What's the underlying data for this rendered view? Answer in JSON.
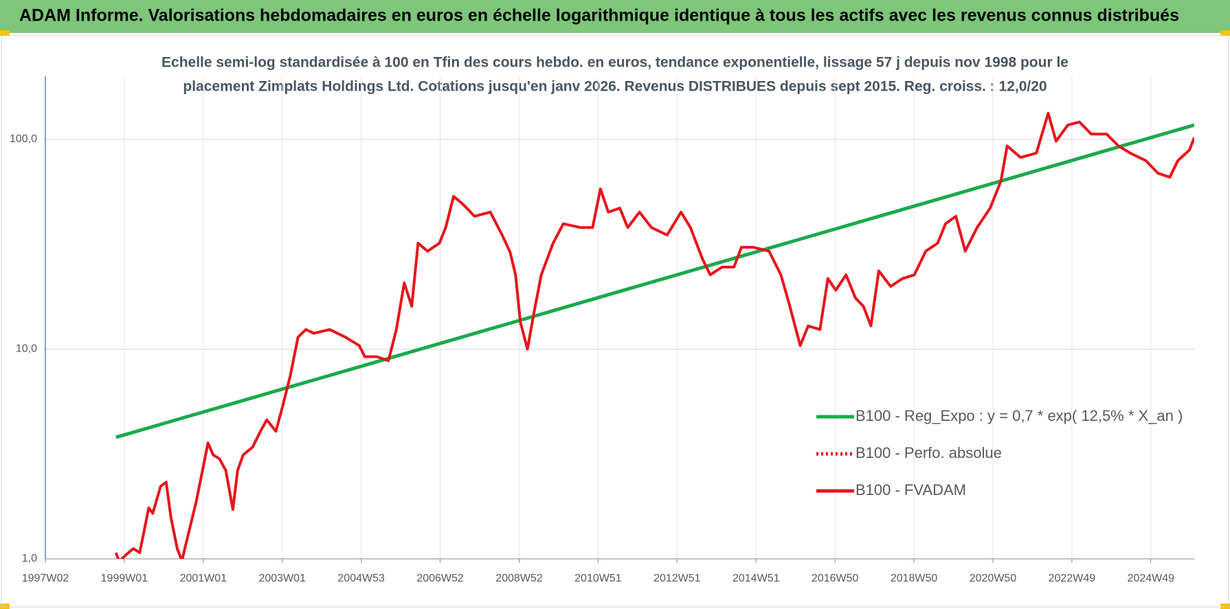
{
  "chart_data": {
    "type": "line",
    "title": "ADAM Informe. Valorisations hebdomadaires en euros en échelle logarithmique identique à tous les actifs avec les revenus connus distribués",
    "subtitle": [
      "Echelle semi-log standardisée à 100 en Tfin des cours hebdo. en euros, tendance exponentielle, lissage 57 j depuis nov 1998 pour le",
      "placement Zimplats Holdings Ltd. Cotations jusqu'en janv 2026. Revenus DISTRIBUES depuis sept 2015. Reg. croiss. : 12,0/20"
    ],
    "log_scale": true,
    "grid": true,
    "legend": "right",
    "ylim": [
      1,
      200
    ],
    "yticks": [
      {
        "value": 1,
        "label": "1,0"
      },
      {
        "value": 10,
        "label": "10,0"
      },
      {
        "value": 100,
        "label": "100,0"
      }
    ],
    "xlim": [
      1997,
      2026.1
    ],
    "xticks": [
      {
        "value": 1997,
        "label": "1997W02"
      },
      {
        "value": 1999,
        "label": "1999W01"
      },
      {
        "value": 2001,
        "label": "2001W01"
      },
      {
        "value": 2003,
        "label": "2003W01"
      },
      {
        "value": 2005,
        "label": "2004W53"
      },
      {
        "value": 2007,
        "label": "2006W52"
      },
      {
        "value": 2009,
        "label": "2008W52"
      },
      {
        "value": 2011,
        "label": "2010W51"
      },
      {
        "value": 2013,
        "label": "2012W51"
      },
      {
        "value": 2015,
        "label": "2014W51"
      },
      {
        "value": 2017,
        "label": "2016W50"
      },
      {
        "value": 2019,
        "label": "2018W50"
      },
      {
        "value": 2021,
        "label": "2020W50"
      },
      {
        "value": 2023,
        "label": "2022W49"
      },
      {
        "value": 2025,
        "label": "2024W49"
      }
    ],
    "series": [
      {
        "name": "B100 - Reg_Expo : y = 0,7 * exp( 12,5% *  X_an )",
        "color": "#1aaa4b",
        "style": "solid",
        "x": [
          1998.79,
          2026.1
        ],
        "values": [
          3.8,
          117
        ]
      },
      {
        "name": "B100 - Perfo. absolue",
        "color": "#e8141c",
        "style": "dotted",
        "x": [],
        "values": []
      },
      {
        "name": "B100 - FVADAM",
        "color": "#e8141c",
        "style": "solid",
        "x": [
          1998.79,
          1998.87,
          1999.03,
          1999.23,
          1999.39,
          1999.62,
          1999.72,
          1999.92,
          2000.06,
          2000.18,
          2000.34,
          2000.46,
          2000.58,
          2000.82,
          2000.98,
          2001.12,
          2001.25,
          2001.41,
          2001.57,
          2001.75,
          2001.87,
          2002.01,
          2002.25,
          2002.45,
          2002.61,
          2002.84,
          2003.0,
          2003.2,
          2003.4,
          2003.6,
          2003.8,
          2004.2,
          2004.6,
          2004.95,
          2005.09,
          2005.39,
          2005.69,
          2005.89,
          2006.09,
          2006.28,
          2006.44,
          2006.68,
          2006.98,
          2007.14,
          2007.34,
          2007.58,
          2007.87,
          2008.27,
          2008.57,
          2008.77,
          2008.91,
          2009.03,
          2009.21,
          2009.37,
          2009.56,
          2009.86,
          2010.12,
          2010.56,
          2010.86,
          2011.06,
          2011.26,
          2011.55,
          2011.75,
          2012.05,
          2012.35,
          2012.75,
          2013.1,
          2013.34,
          2013.64,
          2013.84,
          2014.14,
          2014.44,
          2014.63,
          2014.93,
          2015.33,
          2015.63,
          2015.83,
          2016.12,
          2016.32,
          2016.62,
          2016.82,
          2017.02,
          2017.28,
          2017.52,
          2017.72,
          2017.91,
          2018.11,
          2018.41,
          2018.71,
          2019.01,
          2019.3,
          2019.6,
          2019.8,
          2020.06,
          2020.3,
          2020.6,
          2020.93,
          2021.2,
          2021.36,
          2021.7,
          2022.1,
          2022.4,
          2022.6,
          2022.9,
          2023.19,
          2023.49,
          2023.88,
          2024.18,
          2024.48,
          2024.88,
          2025.18,
          2025.48,
          2025.68,
          2025.98,
          2026.1
        ],
        "values": [
          1.07,
          0.97,
          1.04,
          1.12,
          1.07,
          1.75,
          1.65,
          2.22,
          2.32,
          1.58,
          1.12,
          0.98,
          1.22,
          1.87,
          2.64,
          3.57,
          3.13,
          3.0,
          2.64,
          1.72,
          2.64,
          3.13,
          3.41,
          4.06,
          4.6,
          4.06,
          5.25,
          7.4,
          11.4,
          12.4,
          11.9,
          12.4,
          11.4,
          10.4,
          9.2,
          9.2,
          8.8,
          12.4,
          20.7,
          16.0,
          32,
          29.3,
          32,
          38,
          53.5,
          49,
          43,
          45,
          35,
          29,
          22.6,
          13.5,
          10,
          14.7,
          22.6,
          32,
          39.6,
          38,
          38,
          58,
          45,
          47,
          38,
          45,
          38,
          35,
          45,
          38,
          27,
          22.6,
          24.6,
          24.6,
          30.6,
          30.6,
          29.3,
          22.6,
          16.7,
          10.4,
          12.9,
          12.4,
          21.7,
          19.1,
          22.6,
          17.5,
          16,
          12.9,
          23.6,
          19.9,
          21.7,
          22.6,
          29.3,
          32,
          39.6,
          43,
          29.3,
          38,
          47,
          63,
          93,
          82,
          86,
          133,
          98,
          117,
          121,
          106,
          106,
          93,
          86,
          79,
          69,
          66,
          79,
          89,
          102
        ]
      }
    ]
  }
}
